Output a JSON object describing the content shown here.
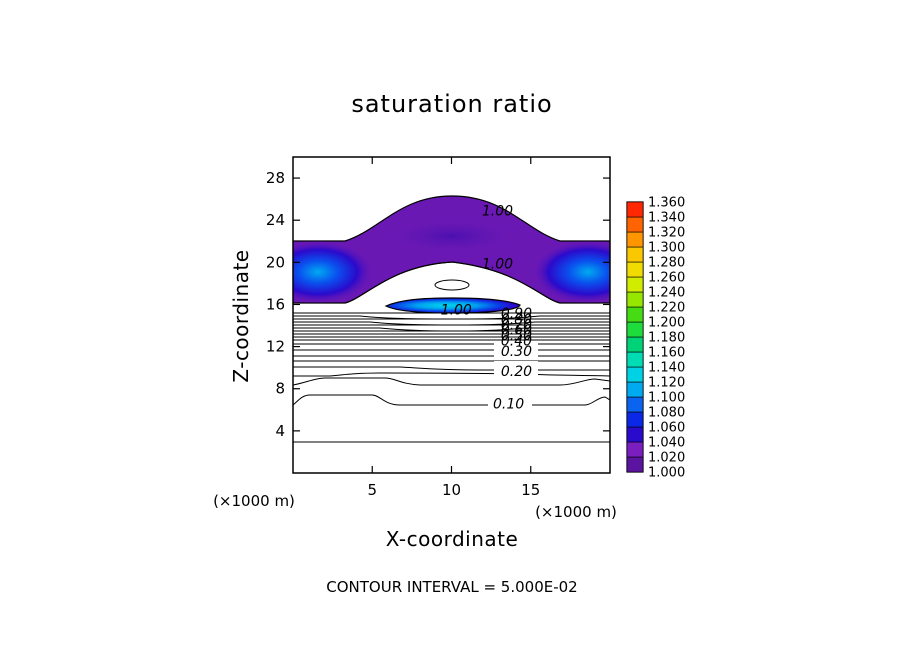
{
  "chart_data": {
    "type": "contour",
    "title": "saturation ratio",
    "xlabel": "X-coordinate",
    "ylabel": "Z-coordinate",
    "x_unit_left": "(×1000 m)",
    "x_unit_right": "(×1000 m)",
    "xlim": [
      0,
      20
    ],
    "ylim": [
      0,
      30
    ],
    "x_ticks": [
      {
        "value": 5,
        "label": "5"
      },
      {
        "value": 10,
        "label": "10"
      },
      {
        "value": 15,
        "label": "15"
      }
    ],
    "y_ticks": [
      {
        "value": 4,
        "label": "4"
      },
      {
        "value": 8,
        "label": "8"
      },
      {
        "value": 12,
        "label": "12"
      },
      {
        "value": 16,
        "label": "16"
      },
      {
        "value": 20,
        "label": "20"
      },
      {
        "value": 24,
        "label": "24"
      },
      {
        "value": 28,
        "label": "28"
      }
    ],
    "colorbar": {
      "levels": [
        "1.000",
        "1.020",
        "1.040",
        "1.060",
        "1.080",
        "1.100",
        "1.120",
        "1.140",
        "1.160",
        "1.180",
        "1.200",
        "1.220",
        "1.240",
        "1.260",
        "1.280",
        "1.300",
        "1.320",
        "1.340",
        "1.360"
      ],
      "colors": [
        "#5a14a0",
        "#7a1ec0",
        "#2a0acc",
        "#0a28e6",
        "#0a64f0",
        "#00aaf0",
        "#00d2e6",
        "#00dcb4",
        "#00d278",
        "#1edc3c",
        "#46dc14",
        "#96e600",
        "#d2ec00",
        "#f0dc00",
        "#fac800",
        "#ff9600",
        "#ff6400",
        "#ff2800",
        "#f07878"
      ]
    },
    "contour_labels": [
      {
        "text": "1.00",
        "x": 12.9,
        "z": 24.9
      },
      {
        "text": "1.00",
        "x": 12.9,
        "z": 19.9
      },
      {
        "text": "1.00",
        "x": 10.3,
        "z": 15.5
      },
      {
        "text": "0.90",
        "x": 14.1,
        "z": 15.2
      },
      {
        "text": "0.80",
        "x": 14.1,
        "z": 14.6
      },
      {
        "text": "0.70",
        "x": 14.1,
        "z": 14.1
      },
      {
        "text": "0.60",
        "x": 14.1,
        "z": 13.6
      },
      {
        "text": "0.50",
        "x": 14.1,
        "z": 13.1
      },
      {
        "text": "0.40",
        "x": 14.1,
        "z": 12.6
      },
      {
        "text": "0.30",
        "x": 14.1,
        "z": 11.6
      },
      {
        "text": "0.20",
        "x": 14.1,
        "z": 9.7
      },
      {
        "text": "0.10",
        "x": 13.6,
        "z": 6.6
      }
    ],
    "footer": "CONTOUR INTERVAL = 5.000E-02"
  }
}
